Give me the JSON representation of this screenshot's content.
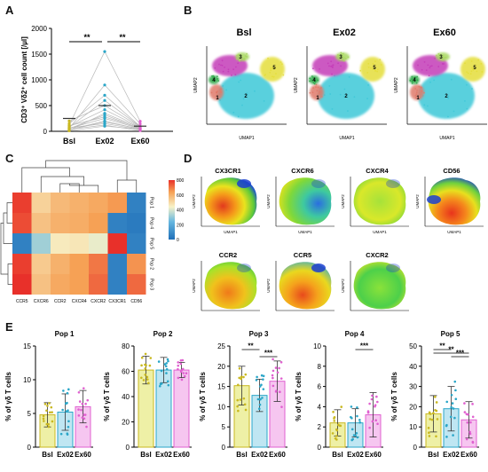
{
  "panels": {
    "a": "A",
    "b": "B",
    "c": "C",
    "d": "D",
    "e": "E"
  },
  "panel_a": {
    "ylabel": "CD3⁺ Vδ2⁺ cell count [/µl]",
    "yticks": [
      "0",
      "500",
      "1000",
      "1500",
      "2000"
    ],
    "sig1": "**",
    "sig2": "**",
    "colors": {
      "Bsl": "#c9b820",
      "Ex02": "#2aa6c8",
      "Ex60": "#e060d0"
    }
  },
  "panel_b": {
    "titles": [
      "Bsl",
      "Ex02",
      "Ex60"
    ],
    "ylabel": "UMAP2",
    "xlabel": "UMAP1",
    "clusters": [
      "1",
      "2",
      "3",
      "4",
      "5"
    ]
  },
  "panel_c": {
    "cols": [
      "CCR5",
      "CXCR6",
      "CCR2",
      "CXCR4",
      "CXCR2",
      "CX3CR1",
      "CD56"
    ],
    "rows": [
      "Pop 1",
      "Pop 4",
      "Pop 5",
      "Pop 2",
      "Pop 3"
    ],
    "scale": [
      "800",
      "600",
      "400",
      "200",
      "0"
    ]
  },
  "panel_d": {
    "titles": [
      "CX3CR1",
      "CXCR6",
      "CXCR4",
      "CD56",
      "CCR2",
      "CCR5",
      "CXCR2"
    ],
    "ylabel": "UMAP2",
    "xlabel": "UMAP1"
  },
  "panel_e": {
    "ylabel": "% of γδ T cells",
    "sig_p3": [
      "**",
      "***"
    ],
    "sig_p4": [
      "***"
    ],
    "sig_p5": [
      "**",
      "***",
      "**"
    ]
  },
  "chart_data": [
    {
      "type": "scatter",
      "panel": "A",
      "categories": [
        "Bsl",
        "Ex02",
        "Ex60"
      ],
      "ylabel": "CD3⁺ Vδ2⁺ cell count [/µl]",
      "ylim": [
        0,
        2000
      ],
      "series": [
        {
          "values": [
            250,
            500,
            100
          ]
        }
      ],
      "paired_lines": true,
      "significance": [
        {
          "pair": [
            "Bsl",
            "Ex02"
          ],
          "label": "**"
        },
        {
          "pair": [
            "Ex02",
            "Ex60"
          ],
          "label": "**"
        }
      ]
    },
    {
      "type": "heatmap",
      "panel": "C",
      "columns": [
        "CCR5",
        "CXCR6",
        "CCR2",
        "CXCR4",
        "CXCR2",
        "CX3CR1",
        "CD56"
      ],
      "rows": [
        "Pop 1",
        "Pop 4",
        "Pop 5",
        "Pop 2",
        "Pop 3"
      ],
      "values": [
        [
          780,
          520,
          580,
          600,
          620,
          650,
          60
        ],
        [
          760,
          560,
          600,
          610,
          640,
          60,
          40
        ],
        [
          60,
          320,
          460,
          470,
          420,
          820,
          60
        ],
        [
          780,
          540,
          600,
          640,
          700,
          60,
          660
        ],
        [
          800,
          560,
          620,
          640,
          720,
          60,
          720
        ]
      ],
      "scale_range": [
        0,
        800
      ]
    },
    {
      "type": "bar",
      "panel": "E",
      "title": "Pop 1",
      "categories": [
        "Bsl",
        "Ex02",
        "Ex60"
      ],
      "values": [
        4.8,
        5.2,
        6.0
      ],
      "errors": [
        1.8,
        2.7,
        2.4
      ],
      "ylim": [
        0,
        15
      ],
      "yticks": [
        0,
        5,
        10,
        15
      ],
      "ylabel": "% of γδ T cells"
    },
    {
      "type": "bar",
      "panel": "E",
      "title": "Pop 2",
      "categories": [
        "Bsl",
        "Ex02",
        "Ex60"
      ],
      "values": [
        61,
        61,
        61
      ],
      "errors": [
        11,
        10,
        6
      ],
      "ylim": [
        0,
        80
      ],
      "yticks": [
        0,
        20,
        40,
        60,
        80
      ]
    },
    {
      "type": "bar",
      "panel": "E",
      "title": "Pop 3",
      "categories": [
        "Bsl",
        "Ex02",
        "Ex60"
      ],
      "values": [
        15.2,
        12.8,
        16.3
      ],
      "errors": [
        4.8,
        4.0,
        5.0
      ],
      "ylim": [
        0,
        25
      ],
      "yticks": [
        0,
        5,
        10,
        15,
        20,
        25
      ],
      "significance": [
        {
          "pair": [
            "Bsl",
            "Ex02"
          ],
          "label": "**"
        },
        {
          "pair": [
            "Ex02",
            "Ex60"
          ],
          "label": "***"
        }
      ]
    },
    {
      "type": "bar",
      "panel": "E",
      "title": "Pop 4",
      "categories": [
        "Bsl",
        "Ex02",
        "Ex60"
      ],
      "values": [
        2.4,
        2.4,
        3.2
      ],
      "errors": [
        1.3,
        1.4,
        2.2
      ],
      "ylim": [
        0,
        10
      ],
      "yticks": [
        0,
        2,
        4,
        6,
        8,
        10
      ],
      "significance": [
        {
          "pair": [
            "Ex02",
            "Ex60"
          ],
          "label": "***"
        }
      ]
    },
    {
      "type": "bar",
      "panel": "E",
      "title": "Pop 5",
      "categories": [
        "Bsl",
        "Ex02",
        "Ex60"
      ],
      "values": [
        16.5,
        19.0,
        13.5
      ],
      "errors": [
        9,
        11,
        9
      ],
      "ylim": [
        0,
        50
      ],
      "yticks": [
        0,
        10,
        20,
        30,
        40,
        50
      ],
      "significance": [
        {
          "pair": [
            "Bsl",
            "Ex02"
          ],
          "label": "**"
        },
        {
          "pair": [
            "Ex02",
            "Ex60"
          ],
          "label": "***"
        },
        {
          "pair": [
            "Bsl",
            "Ex60"
          ],
          "label": "**"
        }
      ]
    }
  ]
}
